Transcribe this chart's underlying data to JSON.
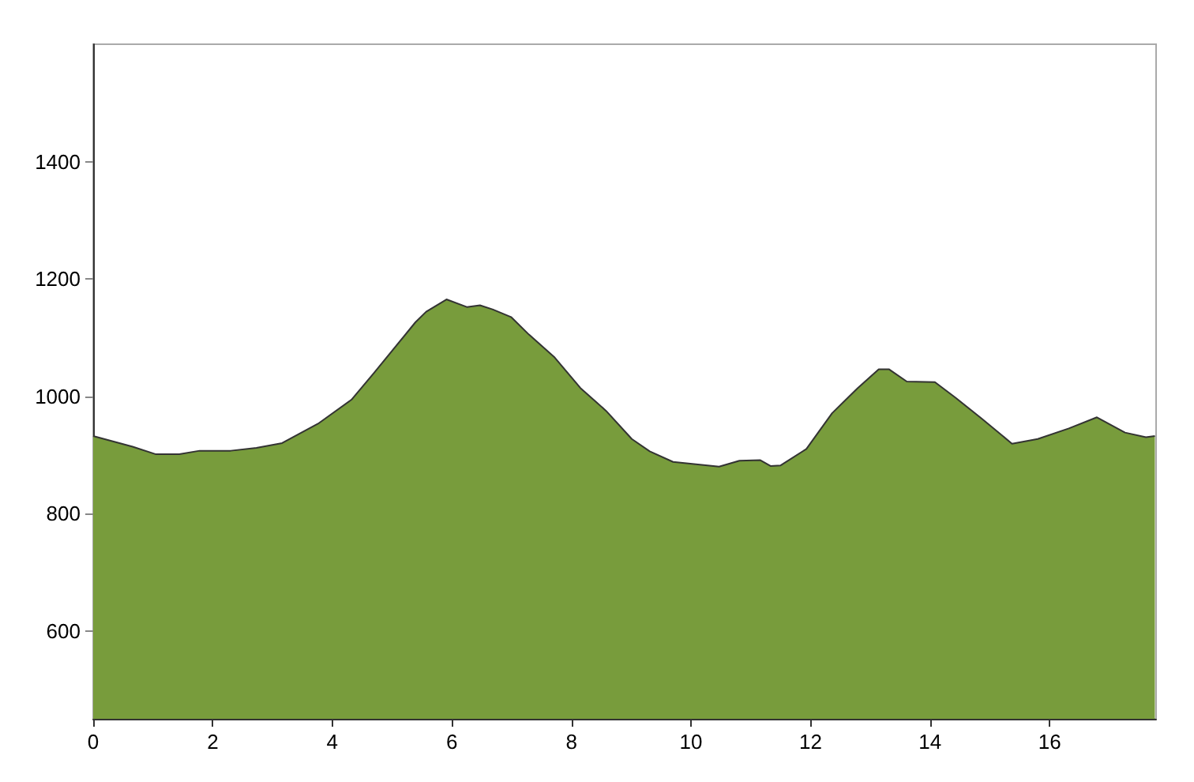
{
  "chart_data": {
    "type": "area",
    "color": "#789c3c",
    "marker": "none",
    "grid": false,
    "x": [
      0,
      0.66,
      1.05,
      1.44,
      1.78,
      2.3,
      2.73,
      3.16,
      3.76,
      4.32,
      4.7,
      5.39,
      5.57,
      5.91,
      6.25,
      6.47,
      6.68,
      6.99,
      7.29,
      7.72,
      8.15,
      8.58,
      9.01,
      9.31,
      9.7,
      10.47,
      10.81,
      11.16,
      11.33,
      11.5,
      11.93,
      12.36,
      12.79,
      13.14,
      13.31,
      13.61,
      14.08,
      14.43,
      14.86,
      15.37,
      15.8,
      16.32,
      16.79,
      17.26,
      17.61,
      17.76
    ],
    "values": [
      932,
      914,
      901,
      901,
      907,
      907,
      912,
      920,
      953,
      994,
      1040,
      1126,
      1144,
      1165,
      1152,
      1155,
      1148,
      1135,
      1105,
      1066,
      1014,
      975,
      927,
      906,
      888,
      880,
      890,
      891,
      881,
      882,
      910,
      971,
      1014,
      1046,
      1046,
      1025,
      1024,
      997,
      962,
      919,
      927,
      945,
      964,
      938,
      930,
      932
    ],
    "xlim": [
      0,
      17.78
    ],
    "xticks": [
      0,
      2,
      4,
      6,
      8,
      10,
      12,
      14,
      16
    ],
    "ylim": [
      450,
      1600
    ],
    "yticks": [
      600,
      800,
      1000,
      1200,
      1400
    ]
  }
}
